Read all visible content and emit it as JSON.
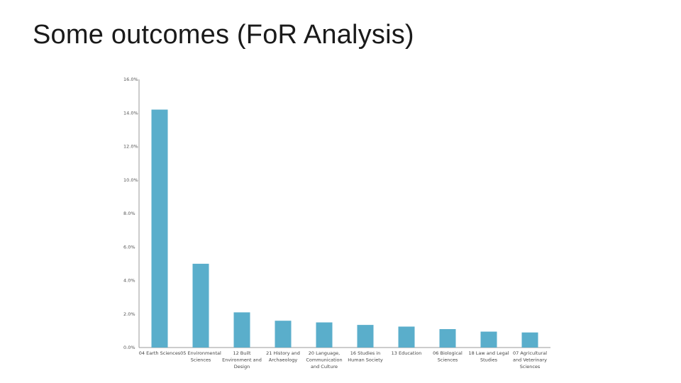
{
  "slide": {
    "title": "Some outcomes (FoR Analysis)"
  },
  "chart_data": {
    "type": "bar",
    "title": "",
    "xlabel": "",
    "ylabel": "",
    "ylim": [
      0,
      16
    ],
    "yticks": [
      "0.0%",
      "2.0%",
      "4.0%",
      "6.0%",
      "8.0%",
      "10.0%",
      "12.0%",
      "14.0%",
      "16.0%"
    ],
    "grid": false,
    "legend": "none",
    "bar_color": "#5aaecb",
    "categories": [
      "04 Earth Sciences",
      "05 Environmental Sciences",
      "12 Built Environment and Design",
      "21 History and Archaeology",
      "20 Language, Communication and Culture",
      "16 Studies in Human Society",
      "13 Education",
      "06 Biological Sciences",
      "18 Law and Legal Studies",
      "07 Agricultural and Veterinary Sciences"
    ],
    "category_lines": [
      [
        "04 Earth Sciences"
      ],
      [
        "05 Environmental",
        "Sciences"
      ],
      [
        "12 Built",
        "Environment and",
        "Design"
      ],
      [
        "21 History and",
        "Archaeology"
      ],
      [
        "20 Language,",
        "Communication",
        "and Culture"
      ],
      [
        "16 Studies in",
        "Human Society"
      ],
      [
        "13 Education"
      ],
      [
        "06 Biological",
        "Sciences"
      ],
      [
        "18 Law and Legal",
        "Studies"
      ],
      [
        "07 Agricultural",
        "and Veterinary",
        "Sciences"
      ]
    ],
    "values": [
      14.2,
      5.0,
      2.1,
      1.6,
      1.5,
      1.35,
      1.25,
      1.1,
      0.95,
      0.9
    ]
  }
}
